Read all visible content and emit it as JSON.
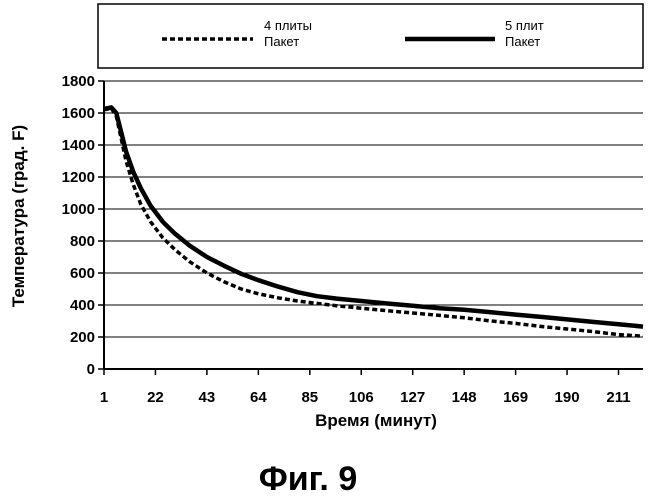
{
  "chart_data": {
    "type": "line",
    "title": "",
    "xlabel": "Время (минут)",
    "ylabel": "Температура (град. F)",
    "xlim": [
      1,
      221
    ],
    "ylim": [
      0,
      1800
    ],
    "x_ticks": [
      "1",
      "22",
      "43",
      "64",
      "85",
      "106",
      "127",
      "148",
      "169",
      "190",
      "211"
    ],
    "y_ticks": [
      "0",
      "200",
      "400",
      "600",
      "800",
      "1000",
      "1200",
      "1400",
      "1600",
      "1800"
    ],
    "grid": true,
    "legend_position": "top",
    "series": [
      {
        "name": "4 плиты Пакет",
        "name_lines": [
          "4 плиты",
          "Пакет"
        ],
        "style": "dashed",
        "color": "#000000",
        "x": [
          1,
          4,
          6,
          8,
          10,
          13,
          16,
          20,
          25,
          30,
          36,
          43,
          50,
          57,
          64,
          72,
          80,
          88,
          96,
          106,
          116,
          127,
          138,
          148,
          159,
          169,
          180,
          190,
          200,
          211,
          221
        ],
        "y": [
          1620,
          1630,
          1580,
          1440,
          1300,
          1150,
          1030,
          920,
          820,
          745,
          670,
          600,
          545,
          500,
          470,
          445,
          425,
          410,
          395,
          380,
          365,
          350,
          335,
          320,
          300,
          285,
          265,
          250,
          235,
          215,
          205
        ]
      },
      {
        "name": "5 плит Пакет",
        "name_lines": [
          "5 плит",
          "Пакет"
        ],
        "style": "solid",
        "color": "#000000",
        "x": [
          1,
          4,
          6,
          8,
          10,
          13,
          16,
          20,
          25,
          30,
          36,
          43,
          50,
          57,
          64,
          72,
          80,
          88,
          96,
          106,
          116,
          127,
          138,
          148,
          159,
          169,
          180,
          190,
          200,
          211,
          221
        ],
        "y": [
          1625,
          1635,
          1600,
          1480,
          1360,
          1230,
          1130,
          1020,
          920,
          845,
          770,
          700,
          645,
          595,
          555,
          515,
          480,
          455,
          440,
          425,
          410,
          395,
          380,
          370,
          355,
          340,
          325,
          310,
          295,
          280,
          265
        ]
      }
    ]
  },
  "caption": "Фиг. 9"
}
